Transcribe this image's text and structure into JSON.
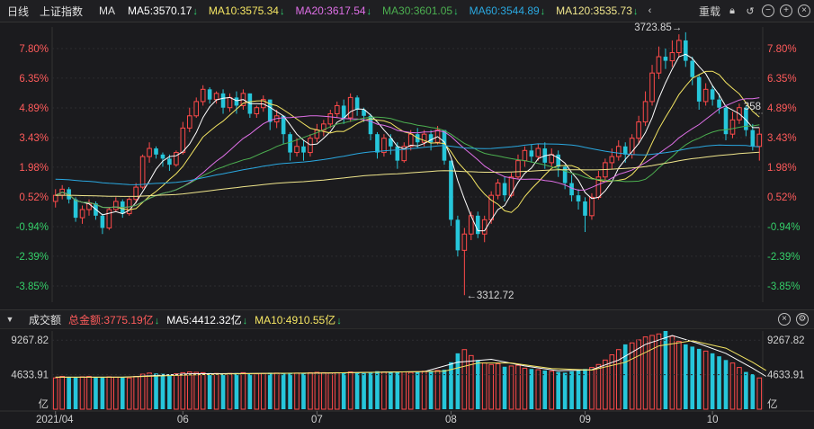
{
  "topbar": {
    "period": "日线",
    "index_name": "上证指数",
    "ma_label": "MA",
    "ma5": "MA5:3570.17",
    "ma10": "MA10:3575.34",
    "ma20": "MA20:3617.54",
    "ma30": "MA30:3601.05",
    "ma60": "MA60:3544.89",
    "ma120": "MA120:3535.73",
    "rights": "重载",
    "arrow": "↓"
  },
  "volbar": {
    "title": "成交额",
    "total": "总金额:3775.19亿",
    "ma5": "MA5:4412.32亿",
    "ma10": "MA10:4910.55亿",
    "arrow": "↓"
  },
  "colors": {
    "up": "#ff4a4a",
    "down": "#26c6da",
    "ma5": "#ffffff",
    "ma10": "#f5e663",
    "ma20": "#e070e8",
    "ma30": "#4caf50",
    "ma60": "#2aa8e0",
    "ma120": "#f0e68c",
    "pos_label": "#ff5b5b",
    "neg_label": "#35d06a"
  },
  "chart_data": {
    "type": "candlestick",
    "y_axis_pct_ticks": [
      "7.80%",
      "6.35%",
      "4.89%",
      "3.43%",
      "1.98%",
      "0.52%",
      "-0.94%",
      "-2.39%",
      "-3.85%"
    ],
    "y_pct_range": [
      -4.5,
      8.6
    ],
    "x_ticks": [
      "2021/04",
      "06",
      "07",
      "08",
      "09",
      "10"
    ],
    "x_tick_index": [
      0,
      19,
      39,
      59,
      79,
      98
    ],
    "annotations": {
      "high": "3723.85",
      "low": "3312.72",
      "last_marker": "358"
    },
    "volume_ticks": [
      "9267.82",
      "4633.91",
      "亿"
    ],
    "volume_max": 10500,
    "candles_pct": [
      [
        0.3,
        0.6,
        0.0,
        0.9
      ],
      [
        0.6,
        0.9,
        0.4,
        1.1
      ],
      [
        0.9,
        0.4,
        0.2,
        1.0
      ],
      [
        0.4,
        -0.5,
        -0.7,
        0.5
      ],
      [
        -0.5,
        -0.1,
        -0.8,
        0.1
      ],
      [
        -0.1,
        0.2,
        -0.4,
        0.4
      ],
      [
        0.2,
        -0.4,
        -0.6,
        0.3
      ],
      [
        -0.4,
        -1.0,
        -1.3,
        -0.3
      ],
      [
        -1.0,
        -0.1,
        -1.1,
        0.0
      ],
      [
        -0.1,
        0.3,
        -0.2,
        0.5
      ],
      [
        0.3,
        -0.3,
        -0.5,
        0.4
      ],
      [
        -0.3,
        0.4,
        -0.4,
        0.5
      ],
      [
        0.4,
        1.0,
        0.2,
        1.2
      ],
      [
        1.0,
        2.5,
        0.9,
        2.6
      ],
      [
        2.5,
        2.9,
        2.2,
        3.2
      ],
      [
        2.9,
        2.6,
        2.4,
        3.0
      ],
      [
        2.6,
        2.4,
        2.0,
        2.7
      ],
      [
        2.4,
        2.1,
        1.8,
        2.6
      ],
      [
        2.1,
        2.7,
        2.0,
        2.8
      ],
      [
        2.7,
        3.9,
        2.6,
        4.2
      ],
      [
        3.9,
        4.5,
        3.7,
        4.9
      ],
      [
        4.5,
        5.2,
        4.4,
        5.4
      ],
      [
        5.2,
        5.8,
        5.0,
        6.0
      ],
      [
        5.8,
        5.3,
        5.1,
        5.9
      ],
      [
        5.3,
        5.6,
        5.1,
        5.7
      ],
      [
        5.6,
        4.9,
        4.6,
        5.8
      ],
      [
        4.9,
        5.4,
        4.7,
        5.6
      ],
      [
        5.4,
        5.0,
        4.6,
        5.7
      ],
      [
        5.0,
        5.6,
        4.8,
        5.8
      ],
      [
        5.6,
        4.6,
        4.4,
        5.6
      ],
      [
        4.6,
        4.9,
        4.4,
        5.0
      ],
      [
        4.9,
        5.3,
        4.7,
        5.5
      ],
      [
        5.3,
        4.2,
        3.8,
        5.3
      ],
      [
        4.2,
        4.5,
        3.9,
        4.8
      ],
      [
        4.5,
        3.6,
        3.1,
        4.5
      ],
      [
        3.6,
        2.7,
        2.3,
        3.7
      ],
      [
        2.7,
        3.0,
        2.5,
        3.4
      ],
      [
        3.0,
        2.7,
        2.3,
        3.3
      ],
      [
        2.7,
        3.4,
        2.5,
        3.6
      ],
      [
        3.4,
        3.8,
        3.2,
        4.1
      ],
      [
        3.8,
        4.1,
        3.5,
        4.3
      ],
      [
        4.1,
        4.6,
        3.9,
        4.8
      ],
      [
        4.6,
        5.0,
        4.4,
        5.2
      ],
      [
        5.0,
        4.4,
        4.1,
        5.3
      ],
      [
        4.4,
        5.4,
        4.2,
        5.6
      ],
      [
        5.4,
        4.8,
        4.5,
        5.5
      ],
      [
        4.8,
        4.5,
        4.2,
        4.9
      ],
      [
        4.5,
        3.6,
        3.3,
        4.6
      ],
      [
        3.6,
        2.7,
        2.4,
        3.7
      ],
      [
        2.7,
        3.4,
        2.5,
        3.6
      ],
      [
        3.4,
        3.0,
        2.6,
        3.6
      ],
      [
        3.0,
        2.3,
        1.9,
        3.2
      ],
      [
        2.3,
        3.0,
        2.2,
        3.2
      ],
      [
        3.0,
        3.6,
        2.8,
        3.8
      ],
      [
        3.6,
        3.2,
        2.9,
        3.9
      ],
      [
        3.2,
        3.6,
        3.0,
        3.8
      ],
      [
        3.6,
        3.2,
        2.8,
        3.8
      ],
      [
        3.2,
        3.8,
        3.1,
        4.0
      ],
      [
        3.8,
        2.3,
        2.1,
        3.8
      ],
      [
        2.3,
        -0.6,
        -0.9,
        2.3
      ],
      [
        -0.6,
        -2.1,
        -2.4,
        -0.4
      ],
      [
        -2.1,
        -1.3,
        -4.3,
        -1.0
      ],
      [
        -1.3,
        -0.4,
        -1.6,
        -0.2
      ],
      [
        -0.4,
        -1.3,
        -1.5,
        -0.2
      ],
      [
        -1.3,
        -0.6,
        -1.7,
        -0.4
      ],
      [
        -0.6,
        0.6,
        -0.8,
        0.8
      ],
      [
        0.6,
        1.2,
        0.4,
        1.4
      ],
      [
        1.2,
        0.6,
        0.3,
        1.5
      ],
      [
        0.6,
        1.5,
        0.5,
        1.7
      ],
      [
        1.5,
        2.3,
        1.4,
        2.6
      ],
      [
        2.3,
        2.8,
        2.0,
        3.0
      ],
      [
        2.8,
        2.5,
        2.2,
        3.1
      ],
      [
        2.5,
        2.9,
        2.3,
        3.1
      ],
      [
        2.9,
        2.2,
        1.9,
        3.2
      ],
      [
        2.2,
        2.6,
        2.0,
        2.9
      ],
      [
        2.6,
        2.0,
        1.5,
        2.8
      ],
      [
        2.0,
        1.2,
        0.9,
        2.1
      ],
      [
        1.2,
        0.6,
        0.3,
        1.6
      ],
      [
        0.6,
        0.3,
        -0.1,
        0.9
      ],
      [
        0.3,
        -0.4,
        -1.2,
        0.5
      ],
      [
        -0.4,
        0.5,
        -0.6,
        0.7
      ],
      [
        0.5,
        1.5,
        0.4,
        1.8
      ],
      [
        1.5,
        2.2,
        1.3,
        2.4
      ],
      [
        2.2,
        2.5,
        1.9,
        2.9
      ],
      [
        2.5,
        3.0,
        2.3,
        3.3
      ],
      [
        3.0,
        2.6,
        2.2,
        3.2
      ],
      [
        2.6,
        3.4,
        2.4,
        3.6
      ],
      [
        3.4,
        4.2,
        3.1,
        4.5
      ],
      [
        4.2,
        5.2,
        4.0,
        5.7
      ],
      [
        5.2,
        6.6,
        5.0,
        7.0
      ],
      [
        6.6,
        7.4,
        6.3,
        7.9
      ],
      [
        7.4,
        7.2,
        6.8,
        7.8
      ],
      [
        7.2,
        7.6,
        6.9,
        8.2
      ],
      [
        7.6,
        8.2,
        7.4,
        8.5
      ],
      [
        8.2,
        7.2,
        6.9,
        8.6
      ],
      [
        7.2,
        6.4,
        6.0,
        7.4
      ],
      [
        6.4,
        5.2,
        4.8,
        6.5
      ],
      [
        5.2,
        5.8,
        5.0,
        6.1
      ],
      [
        5.8,
        5.3,
        5.0,
        6.0
      ],
      [
        5.3,
        4.9,
        4.6,
        5.6
      ],
      [
        4.9,
        3.6,
        3.3,
        5.0
      ],
      [
        3.6,
        4.3,
        3.4,
        4.7
      ],
      [
        4.3,
        4.9,
        4.1,
        5.1
      ],
      [
        4.9,
        3.8,
        3.5,
        5.0
      ],
      [
        3.8,
        3.0,
        2.8,
        4.1
      ],
      [
        3.0,
        3.6,
        2.3,
        3.9
      ]
    ],
    "volumes": [
      4200,
      4400,
      4300,
      4250,
      4350,
      4400,
      4300,
      4250,
      4350,
      4300,
      4250,
      4200,
      4400,
      4700,
      4850,
      4800,
      4750,
      4700,
      4750,
      4900,
      5000,
      4950,
      4900,
      4850,
      4800,
      4750,
      4800,
      4850,
      4900,
      4800,
      4750,
      4800,
      4900,
      4850,
      4800,
      4900,
      4850,
      4800,
      4900,
      4950,
      4900,
      4850,
      4900,
      4950,
      5000,
      4900,
      4850,
      4950,
      5100,
      5000,
      4950,
      5050,
      5000,
      4950,
      5050,
      5100,
      5150,
      5200,
      5300,
      6300,
      7500,
      8000,
      7200,
      6600,
      6200,
      6000,
      6100,
      5700,
      5800,
      5900,
      5500,
      5400,
      5300,
      5200,
      5100,
      5000,
      4900,
      5100,
      5200,
      5400,
      5600,
      6000,
      6600,
      7300,
      8000,
      8700,
      8900,
      9300,
      9700,
      9900,
      10100,
      10500,
      9800,
      9100,
      8700,
      8400,
      8100,
      7800,
      7500,
      7100,
      6600,
      6200,
      5600,
      5000,
      4700,
      4200
    ],
    "volume_ma5_pts": [
      [
        0,
        4300
      ],
      [
        10,
        4300
      ],
      [
        20,
        4750
      ],
      [
        30,
        4800
      ],
      [
        40,
        4850
      ],
      [
        50,
        5000
      ],
      [
        55,
        5050
      ],
      [
        60,
        6300
      ],
      [
        65,
        6700
      ],
      [
        70,
        5800
      ],
      [
        75,
        5150
      ],
      [
        80,
        5300
      ],
      [
        84,
        6600
      ],
      [
        88,
        8700
      ],
      [
        92,
        9900
      ],
      [
        96,
        8800
      ],
      [
        100,
        7500
      ],
      [
        104,
        5500
      ],
      [
        106,
        4400
      ]
    ],
    "volume_ma10_pts": [
      [
        0,
        4300
      ],
      [
        10,
        4300
      ],
      [
        20,
        4600
      ],
      [
        30,
        4800
      ],
      [
        40,
        4850
      ],
      [
        50,
        4980
      ],
      [
        58,
        5100
      ],
      [
        63,
        6200
      ],
      [
        68,
        6200
      ],
      [
        74,
        5450
      ],
      [
        80,
        5250
      ],
      [
        85,
        6300
      ],
      [
        90,
        8500
      ],
      [
        95,
        9200
      ],
      [
        100,
        8200
      ],
      [
        104,
        6300
      ],
      [
        106,
        5200
      ]
    ]
  }
}
